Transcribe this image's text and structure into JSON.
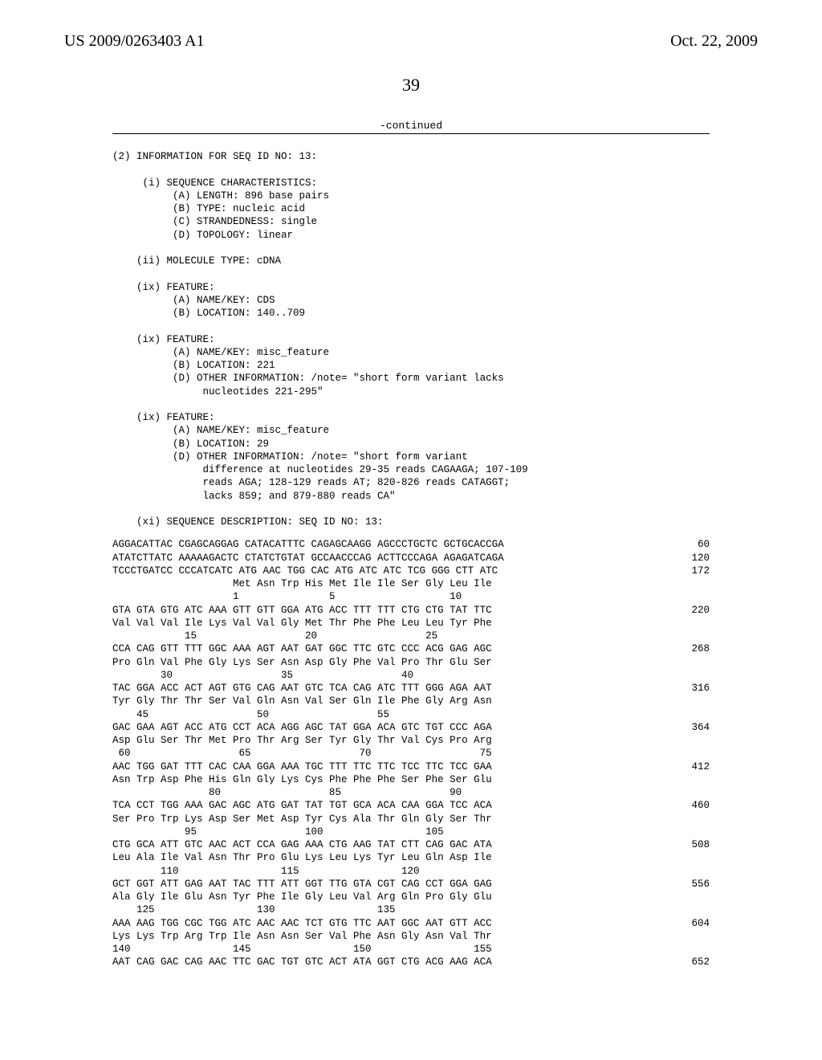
{
  "header": {
    "publication_number": "US 2009/0263403 A1",
    "publication_date": "Oct. 22, 2009"
  },
  "page_number": "39",
  "continued_label": "-continued",
  "info_header": "(2) INFORMATION FOR SEQ ID NO: 13:",
  "characteristics": {
    "title": "     (i) SEQUENCE CHARACTERISTICS:",
    "a": "          (A) LENGTH: 896 base pairs",
    "b": "          (B) TYPE: nucleic acid",
    "c": "          (C) STRANDEDNESS: single",
    "d": "          (D) TOPOLOGY: linear"
  },
  "molecule": "    (ii) MOLECULE TYPE: cDNA",
  "feature1": {
    "title": "    (ix) FEATURE:",
    "a": "          (A) NAME/KEY: CDS",
    "b": "          (B) LOCATION: 140..709"
  },
  "feature2": {
    "title": "    (ix) FEATURE:",
    "a": "          (A) NAME/KEY: misc_feature",
    "b": "          (B) LOCATION: 221",
    "d1": "          (D) OTHER INFORMATION: /note= \"short form variant lacks",
    "d2": "               nucleotides 221-295\""
  },
  "feature3": {
    "title": "    (ix) FEATURE:",
    "a": "          (A) NAME/KEY: misc_feature",
    "b": "          (B) LOCATION: 29",
    "d1": "          (D) OTHER INFORMATION: /note= \"short form variant",
    "d2": "               difference at nucleotides 29-35 reads CAGAAGA; 107-109",
    "d3": "               reads AGA; 128-129 reads AT; 820-826 reads CATAGGT;",
    "d4": "               lacks 859; and 879-880 reads CA\""
  },
  "seq_desc": "    (xi) SEQUENCE DESCRIPTION: SEQ ID NO: 13:",
  "rows": [
    {
      "l": "AGGACATTAC CGAGCAGGAG CATACATTTC CAGAGCAAGG AGCCCTGCTC GCTGCACCGA",
      "r": "60"
    },
    {
      "l": "",
      "r": ""
    },
    {
      "l": "ATATCTTATC AAAAAGACTC CTATCTGTAT GCCAACCCAG ACTTCCCAGA AGAGATCAGA",
      "r": "120"
    },
    {
      "l": "",
      "r": ""
    },
    {
      "l": "TCCCTGATCC CCCATCATC ATG AAC TGG CAC ATG ATC ATC TCG GGG CTT ATC",
      "r": "172"
    },
    {
      "l": "                    Met Asn Trp His Met Ile Ile Ser Gly Leu Ile",
      "r": ""
    },
    {
      "l": "                    1               5                   10",
      "r": ""
    },
    {
      "l": "",
      "r": ""
    },
    {
      "l": "GTA GTA GTG ATC AAA GTT GTT GGA ATG ACC TTT TTT CTG CTG TAT TTC",
      "r": "220"
    },
    {
      "l": "Val Val Val Ile Lys Val Val Gly Met Thr Phe Phe Leu Leu Tyr Phe",
      "r": ""
    },
    {
      "l": "            15                  20                  25",
      "r": ""
    },
    {
      "l": "",
      "r": ""
    },
    {
      "l": "CCA CAG GTT TTT GGC AAA AGT AAT GAT GGC TTC GTC CCC ACG GAG AGC",
      "r": "268"
    },
    {
      "l": "Pro Gln Val Phe Gly Lys Ser Asn Asp Gly Phe Val Pro Thr Glu Ser",
      "r": ""
    },
    {
      "l": "        30                  35                  40",
      "r": ""
    },
    {
      "l": "",
      "r": ""
    },
    {
      "l": "TAC GGA ACC ACT AGT GTG CAG AAT GTC TCA CAG ATC TTT GGG AGA AAT",
      "r": "316"
    },
    {
      "l": "Tyr Gly Thr Thr Ser Val Gln Asn Val Ser Gln Ile Phe Gly Arg Asn",
      "r": ""
    },
    {
      "l": "    45                  50                  55",
      "r": ""
    },
    {
      "l": "",
      "r": ""
    },
    {
      "l": "GAC GAA AGT ACC ATG CCT ACA AGG AGC TAT GGA ACA GTC TGT CCC AGA",
      "r": "364"
    },
    {
      "l": "Asp Glu Ser Thr Met Pro Thr Arg Ser Tyr Gly Thr Val Cys Pro Arg",
      "r": ""
    },
    {
      "l": " 60                  65                  70                  75",
      "r": ""
    },
    {
      "l": "",
      "r": ""
    },
    {
      "l": "AAC TGG GAT TTT CAC CAA GGA AAA TGC TTT TTC TTC TCC TTC TCC GAA",
      "r": "412"
    },
    {
      "l": "Asn Trp Asp Phe His Gln Gly Lys Cys Phe Phe Phe Ser Phe Ser Glu",
      "r": ""
    },
    {
      "l": "                80                  85                  90",
      "r": ""
    },
    {
      "l": "",
      "r": ""
    },
    {
      "l": "TCA CCT TGG AAA GAC AGC ATG GAT TAT TGT GCA ACA CAA GGA TCC ACA",
      "r": "460"
    },
    {
      "l": "Ser Pro Trp Lys Asp Ser Met Asp Tyr Cys Ala Thr Gln Gly Ser Thr",
      "r": ""
    },
    {
      "l": "            95                  100                 105",
      "r": ""
    },
    {
      "l": "",
      "r": ""
    },
    {
      "l": "CTG GCA ATT GTC AAC ACT CCA GAG AAA CTG AAG TAT CTT CAG GAC ATA",
      "r": "508"
    },
    {
      "l": "Leu Ala Ile Val Asn Thr Pro Glu Lys Leu Lys Tyr Leu Gln Asp Ile",
      "r": ""
    },
    {
      "l": "        110                 115                 120",
      "r": ""
    },
    {
      "l": "",
      "r": ""
    },
    {
      "l": "GCT GGT ATT GAG AAT TAC TTT ATT GGT TTG GTA CGT CAG CCT GGA GAG",
      "r": "556"
    },
    {
      "l": "Ala Gly Ile Glu Asn Tyr Phe Ile Gly Leu Val Arg Gln Pro Gly Glu",
      "r": ""
    },
    {
      "l": "    125                 130                 135",
      "r": ""
    },
    {
      "l": "",
      "r": ""
    },
    {
      "l": "AAA AAG TGG CGC TGG ATC AAC AAC TCT GTG TTC AAT GGC AAT GTT ACC",
      "r": "604"
    },
    {
      "l": "Lys Lys Trp Arg Trp Ile Asn Asn Ser Val Phe Asn Gly Asn Val Thr",
      "r": ""
    },
    {
      "l": "140                 145                 150                 155",
      "r": ""
    },
    {
      "l": "",
      "r": ""
    },
    {
      "l": "AAT CAG GAC CAG AAC TTC GAC TGT GTC ACT ATA GGT CTG ACG AAG ACA",
      "r": "652"
    }
  ]
}
